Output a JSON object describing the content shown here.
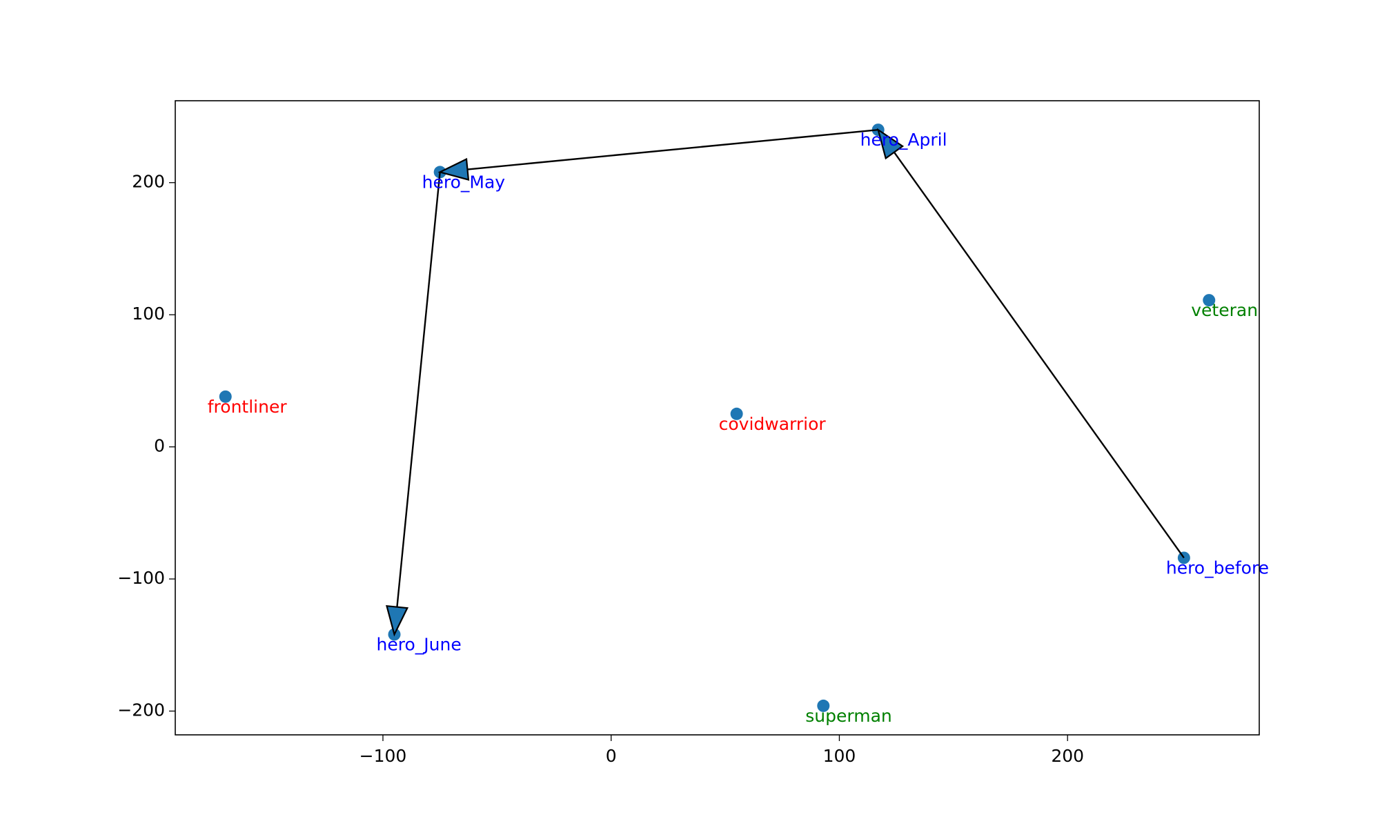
{
  "chart_data": {
    "type": "scatter",
    "labels": [
      "hero_before",
      "hero_April",
      "hero_May",
      "hero_June",
      "frontliner",
      "covidwarrior",
      "veteran",
      "superman"
    ],
    "x": [
      251,
      117,
      -75,
      -95,
      -169,
      55,
      262,
      93
    ],
    "values": [
      -84,
      240,
      208,
      -142,
      38,
      25,
      111,
      -196
    ],
    "label_colors": [
      "#0000ff",
      "#0000ff",
      "#0000ff",
      "#0000ff",
      "#ff0000",
      "#ff0000",
      "#008000",
      "#008000"
    ],
    "color": "#1f77b4",
    "arrow_path": [
      "hero_before",
      "hero_April",
      "hero_May",
      "hero_June"
    ],
    "xlim": [
      -191,
      284
    ],
    "ylim": [
      -218,
      262
    ],
    "xticks": [
      {
        "value": -100,
        "label": "−100"
      },
      0,
      100,
      200
    ],
    "yticks": [
      {
        "value": -200,
        "label": "−200"
      },
      {
        "value": -100,
        "label": "−100"
      },
      0,
      100,
      200
    ],
    "grid": false
  }
}
